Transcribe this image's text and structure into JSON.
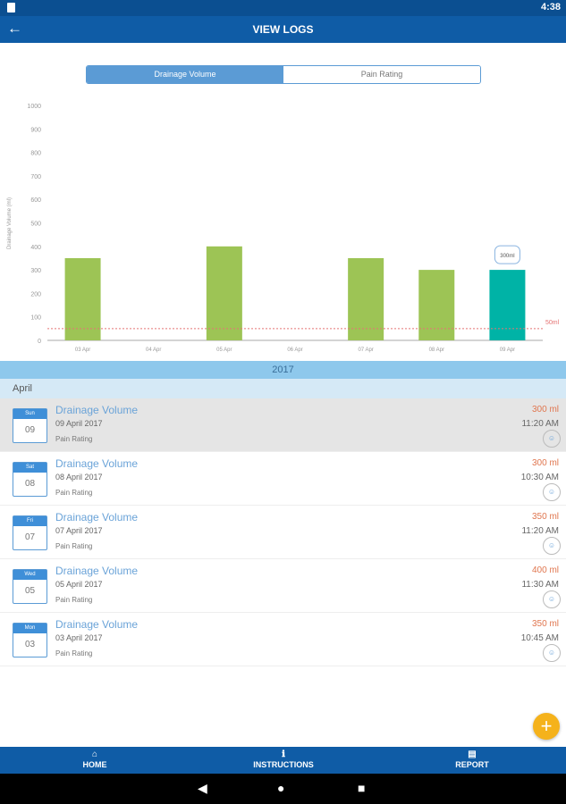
{
  "status": {
    "time": "4:38"
  },
  "header": {
    "title": "VIEW LOGS",
    "back_icon": "arrow-left"
  },
  "tabs": [
    {
      "label": "Drainage Volume",
      "active": true
    },
    {
      "label": "Pain Rating",
      "active": false
    }
  ],
  "chart_data": {
    "type": "bar",
    "ylabel": "Drainage Volume (ml)",
    "ylim": [
      0,
      1000
    ],
    "yticks": [
      0,
      100,
      200,
      300,
      400,
      500,
      600,
      700,
      800,
      900,
      1000
    ],
    "categories": [
      "03 Apr",
      "04 Apr",
      "05 Apr",
      "06 Apr",
      "07 Apr",
      "08 Apr",
      "09 Apr"
    ],
    "values": [
      350,
      0,
      400,
      0,
      350,
      300,
      300
    ],
    "highlight_index": 6,
    "highlight_label": "300ml",
    "threshold": {
      "value": 50,
      "label": "50ml"
    },
    "colors": {
      "bar": "#9dc455",
      "highlight": "#00b3a6",
      "threshold": "#e57373"
    }
  },
  "list": {
    "year": "2017",
    "month": "April",
    "entries": [
      {
        "day": "Sun",
        "num": "09",
        "title": "Drainage Volume",
        "date": "09 April 2017",
        "pain": "Pain Rating",
        "value": "300 ml",
        "time": "11:20 AM"
      },
      {
        "day": "Sat",
        "num": "08",
        "title": "Drainage Volume",
        "date": "08 April 2017",
        "pain": "Pain Rating",
        "value": "300 ml",
        "time": "10:30 AM"
      },
      {
        "day": "Fri",
        "num": "07",
        "title": "Drainage Volume",
        "date": "07 April 2017",
        "pain": "Pain Rating",
        "value": "350 ml",
        "time": "11:20 AM"
      },
      {
        "day": "Wed",
        "num": "05",
        "title": "Drainage Volume",
        "date": "05 April 2017",
        "pain": "Pain Rating",
        "value": "400 ml",
        "time": "11:30 AM"
      },
      {
        "day": "Mon",
        "num": "03",
        "title": "Drainage Volume",
        "date": "03 April 2017",
        "pain": "Pain Rating",
        "value": "350 ml",
        "time": "10:45 AM"
      }
    ]
  },
  "fab": {
    "label": "+"
  },
  "bottom_nav": [
    {
      "label": "HOME",
      "icon": "⌂"
    },
    {
      "label": "INSTRUCTIONS",
      "icon": "ℹ"
    },
    {
      "label": "REPORT",
      "icon": "▤"
    }
  ]
}
